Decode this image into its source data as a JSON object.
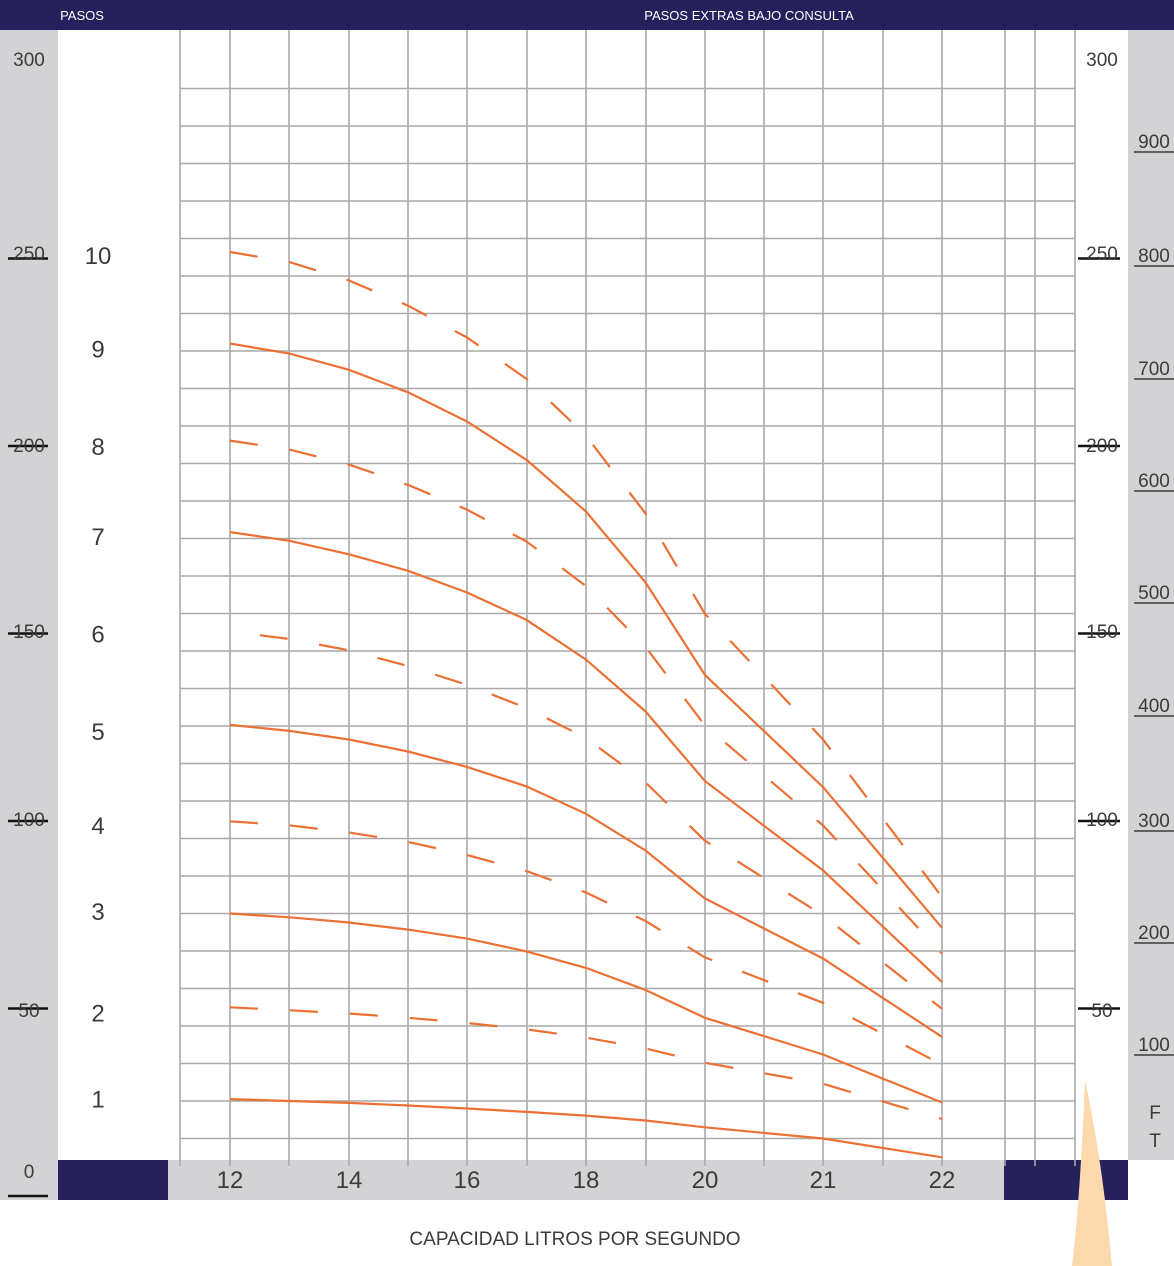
{
  "chart_data": {
    "type": "line",
    "header_left": "PASOS",
    "header_right": "PASOS EXTRAS BAJO CONSULTA",
    "xlabel": "CAPACIDAD LITROS POR SEGUNDO",
    "x_ticks": [
      "12",
      "14",
      "16",
      "18",
      "20",
      "21",
      "22"
    ],
    "y_left_ticks": [
      "300",
      "250",
      "200",
      "150",
      "100",
      "50",
      "0"
    ],
    "y_right_ticks": [
      "300",
      "250",
      "200",
      "150",
      "100",
      "50"
    ],
    "y_ft_ticks": [
      "900",
      "800",
      "700",
      "600",
      "500",
      "400",
      "300",
      "200",
      "100"
    ],
    "ft_label": [
      "F",
      "T"
    ],
    "ylim": [
      0,
      300
    ],
    "colors": {
      "navy": "#26215c",
      "band": "#d3d3d5",
      "curve": "#ec7033",
      "grid": "#a9a9ab",
      "accent": "#fbd9ad"
    },
    "series": [
      {
        "name": "1",
        "style": "solid",
        "x": [
          12,
          13,
          14,
          15,
          16,
          17,
          18,
          19,
          20,
          21,
          22
        ],
        "y": [
          20.5,
          20,
          19.5,
          18.8,
          18,
          17.1,
          16.1,
          14.8,
          13,
          10,
          5
        ]
      },
      {
        "name": "2",
        "style": "dashed",
        "x": [
          12,
          13,
          14,
          15,
          16,
          17,
          18,
          19,
          20,
          21,
          22
        ],
        "y": [
          45,
          44.2,
          43.3,
          42.2,
          40.8,
          39.1,
          36.9,
          34,
          30.2,
          24.6,
          15.2
        ]
      },
      {
        "name": "3",
        "style": "solid",
        "x": [
          12,
          13,
          14,
          15,
          16,
          17,
          18,
          19,
          20,
          21,
          22
        ],
        "y": [
          70,
          69,
          67.6,
          65.7,
          63.3,
          59.9,
          55.5,
          49.6,
          42.2,
          32.4,
          19.6
        ]
      },
      {
        "name": "4",
        "style": "dashed",
        "x": [
          12,
          13,
          14,
          15,
          16,
          17,
          18,
          19,
          20,
          21,
          22
        ],
        "y": [
          94.6,
          93.5,
          91.6,
          89.1,
          85.6,
          81.3,
          75.6,
          68,
          58.3,
          46.2,
          29.7
        ]
      },
      {
        "name": "5",
        "style": "solid",
        "x": [
          12,
          13,
          14,
          15,
          16,
          17,
          18,
          19,
          20,
          21,
          22
        ],
        "y": [
          120.3,
          118.7,
          116.4,
          113.2,
          109.1,
          103.9,
          96.6,
          86.8,
          74,
          58,
          37.1
        ]
      },
      {
        "name": "6",
        "style": "dashed",
        "x": [
          12.5,
          13,
          14,
          15,
          16,
          17,
          18,
          19,
          20,
          21,
          22
        ],
        "y": [
          144.2,
          143.2,
          140.2,
          136,
          131,
          124.8,
          116.8,
          105,
          89.4,
          69.5,
          44.6
        ]
      },
      {
        "name": "7",
        "style": "solid",
        "x": [
          12,
          13,
          14,
          15,
          16,
          17,
          18,
          19,
          20,
          21,
          22
        ],
        "y": [
          171.7,
          169.4,
          165.8,
          161.4,
          155.6,
          148.3,
          137.7,
          123.9,
          105.3,
          81.5,
          51.7
        ]
      },
      {
        "name": "8",
        "style": "dashed",
        "x": [
          12,
          13,
          14,
          15,
          16,
          17,
          18,
          19,
          20,
          21,
          22
        ],
        "y": [
          196.1,
          193.7,
          189.7,
          184.3,
          177.7,
          169.2,
          157.3,
          141.1,
          120.1,
          93.5,
          59.3
        ]
      },
      {
        "name": "9",
        "style": "solid",
        "x": [
          12,
          13,
          14,
          15,
          16,
          17,
          18,
          19,
          20,
          21,
          22
        ],
        "y": [
          222,
          219.3,
          215,
          209,
          201.2,
          191,
          177.2,
          158.3,
          133.6,
          103.7,
          66.2
        ]
      },
      {
        "name": "10",
        "style": "dashed",
        "x": [
          12,
          13,
          14,
          15,
          16,
          17,
          18,
          19,
          20,
          21,
          22
        ],
        "y": [
          246.4,
          243.7,
          238.8,
          232.1,
          223.6,
          212.6,
          197.4,
          176.7,
          149.9,
          116.4,
          74.4
        ]
      }
    ],
    "step_labels": [
      {
        "text": "10",
        "y": 247
      },
      {
        "text": "9",
        "y": 222
      },
      {
        "text": "8",
        "y": 196
      },
      {
        "text": "7",
        "y": 172
      },
      {
        "text": "6",
        "y": 146
      },
      {
        "text": "5",
        "y": 120
      },
      {
        "text": "4",
        "y": 95
      },
      {
        "text": "3",
        "y": 72
      },
      {
        "text": "2",
        "y": 45
      },
      {
        "text": "1",
        "y": 22
      }
    ],
    "grid": true
  }
}
